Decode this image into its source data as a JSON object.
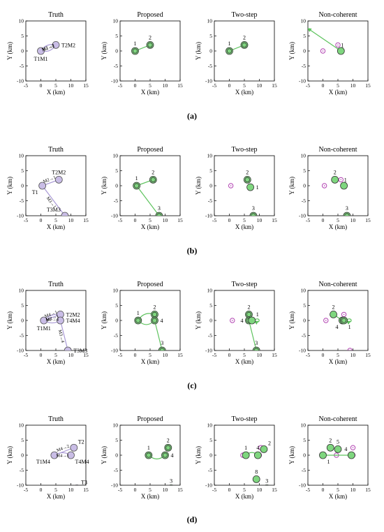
{
  "style": {
    "truth_fill": "#c9bde6",
    "est_fill": "#7fd67f",
    "ghost": "#b244b2",
    "truth_arrow": "#a999d6",
    "est_arrow": "#5dc35d",
    "frame": "#000000"
  },
  "axes": {
    "xlabel": "X (km)",
    "ylabel": "Y (km)",
    "xlim": [
      -5,
      15
    ],
    "ylim": [
      -10,
      10
    ],
    "xticks": [
      -5,
      0,
      5,
      10,
      15
    ],
    "yticks": [
      10,
      5,
      0,
      -5,
      -10
    ]
  },
  "column_titles": [
    "Truth",
    "Proposed",
    "Two-step",
    "Non-coherent"
  ],
  "chart_data": [
    {
      "row_label": "(a)",
      "panels": [
        {
          "title": "Truth",
          "type": "scatter",
          "nodes": [
            {
              "x": 0,
              "y": 0,
              "label": "T1M1",
              "label_pos": "below"
            },
            {
              "x": 5,
              "y": 2,
              "label": "T2M2",
              "label_pos": "right"
            }
          ],
          "links": [
            {
              "from": [
                5,
                2
              ],
              "to": [
                0,
                0
              ],
              "label": "M2→1",
              "bend": -0.35
            },
            {
              "from": [
                0,
                0
              ],
              "to": [
                5,
                2
              ],
              "label": "M1→2",
              "bend": -0.35
            }
          ]
        },
        {
          "title": "Proposed",
          "type": "scatter",
          "est": [
            {
              "x": 0,
              "y": 0,
              "label": "1",
              "label_pos": "above",
              "ring": true
            },
            {
              "x": 5,
              "y": 2,
              "label": "2",
              "label_pos": "above",
              "ring": true
            }
          ],
          "ghosts": [],
          "arrows": [
            {
              "from": [
                5,
                2
              ],
              "to": [
                0,
                0
              ]
            }
          ]
        },
        {
          "title": "Two-step",
          "type": "scatter",
          "est": [
            {
              "x": 0,
              "y": 0,
              "label": "1",
              "label_pos": "above",
              "ring": true
            },
            {
              "x": 5,
              "y": 2,
              "label": "2",
              "label_pos": "above",
              "ring": true
            }
          ],
          "ghosts": [],
          "arrows": [
            {
              "from": [
                0,
                0
              ],
              "to": [
                5,
                2
              ]
            }
          ]
        },
        {
          "title": "Non-coherent",
          "type": "scatter",
          "est": [
            {
              "x": 6,
              "y": 0,
              "label": "",
              "label_pos": "above",
              "ring": false
            }
          ],
          "ghosts": [
            {
              "x": 0,
              "y": 0,
              "label": ""
            },
            {
              "x": 5,
              "y": 2,
              "label": "1"
            }
          ],
          "arrows": [
            {
              "from": [
                6,
                0
              ],
              "to": [
                -5,
                7.5
              ]
            }
          ]
        }
      ]
    },
    {
      "row_label": "(b)",
      "panels": [
        {
          "title": "Truth",
          "type": "scatter",
          "nodes": [
            {
              "x": 0.5,
              "y": 0,
              "label": "T1",
              "label_pos": "below-left"
            },
            {
              "x": 6,
              "y": 2,
              "label": "T2M2",
              "label_pos": "above"
            },
            {
              "x": 8,
              "y": -10,
              "label": "T3M3",
              "label_pos": "above-left"
            }
          ],
          "links": [
            {
              "from": [
                6,
                2
              ],
              "to": [
                0.5,
                0
              ],
              "label": "M2→1",
              "bend": 0
            },
            {
              "from": [
                8,
                -10
              ],
              "to": [
                0.5,
                0
              ],
              "label": "M3→1",
              "bend": 0
            }
          ]
        },
        {
          "title": "Proposed",
          "type": "scatter",
          "est": [
            {
              "x": 0.5,
              "y": 0,
              "label": "1",
              "label_pos": "above",
              "ring": true
            },
            {
              "x": 6,
              "y": 2,
              "label": "2",
              "label_pos": "above",
              "ring": true
            },
            {
              "x": 8,
              "y": -10,
              "label": "3",
              "label_pos": "above",
              "ring": true
            }
          ],
          "ghosts": [],
          "arrows": [
            {
              "from": [
                6,
                2
              ],
              "to": [
                0.5,
                0
              ]
            },
            {
              "from": [
                8,
                -10
              ],
              "to": [
                0.5,
                0
              ]
            }
          ]
        },
        {
          "title": "Two-step",
          "type": "scatter",
          "est": [
            {
              "x": 6,
              "y": 2,
              "label": "2",
              "label_pos": "above",
              "ring": true
            },
            {
              "x": 7,
              "y": -0.5,
              "label": "1",
              "label_pos": "right",
              "ring": false
            },
            {
              "x": 8,
              "y": -10,
              "label": "3",
              "label_pos": "above",
              "ring": true
            }
          ],
          "ghosts": [
            {
              "x": 0.5,
              "y": 0,
              "label": ""
            }
          ],
          "arrows": []
        },
        {
          "title": "Non-coherent",
          "type": "scatter",
          "est": [
            {
              "x": 4,
              "y": 2,
              "label": "2",
              "label_pos": "above",
              "ring": false
            },
            {
              "x": 7,
              "y": 0,
              "label": "",
              "label_pos": "above",
              "ring": false
            },
            {
              "x": 8,
              "y": -10,
              "label": "3",
              "label_pos": "above",
              "ring": true
            }
          ],
          "ghosts": [
            {
              "x": 0.5,
              "y": 0,
              "label": ""
            },
            {
              "x": 6,
              "y": 2,
              "label": "1"
            }
          ],
          "arrows": []
        }
      ]
    },
    {
      "row_label": "(c)",
      "panels": [
        {
          "title": "Truth",
          "type": "scatter",
          "nodes": [
            {
              "x": 1,
              "y": 0,
              "label": "T1M1",
              "label_pos": "below"
            },
            {
              "x": 6.5,
              "y": 2,
              "label": "T2M2",
              "label_pos": "right"
            },
            {
              "x": 6.5,
              "y": 0,
              "label": "T4M4",
              "label_pos": "right"
            },
            {
              "x": 9,
              "y": -10,
              "label": "T3M3",
              "label_pos": "right"
            }
          ],
          "links": [
            {
              "from": [
                6.5,
                2
              ],
              "to": [
                1,
                0
              ],
              "label": "M4→1",
              "bend": 0
            },
            {
              "from": [
                6.5,
                2
              ],
              "to": [
                1,
                0
              ],
              "label": "M2→1",
              "bend": 0.25
            },
            {
              "from": [
                1,
                0
              ],
              "to": [
                6.5,
                0
              ],
              "label": "M1→4",
              "bend": 0.3
            },
            {
              "from": [
                9,
                -10
              ],
              "to": [
                6.5,
                0
              ],
              "label": "M3→4",
              "bend": 0
            }
          ]
        },
        {
          "title": "Proposed",
          "type": "scatter",
          "est": [
            {
              "x": 1,
              "y": 0,
              "label": "1",
              "label_pos": "above",
              "ring": true
            },
            {
              "x": 6.5,
              "y": 2,
              "label": "2",
              "label_pos": "above",
              "ring": true
            },
            {
              "x": 6.5,
              "y": 0,
              "label": "4",
              "label_pos": "right",
              "ring": true
            },
            {
              "x": 9,
              "y": -10,
              "label": "3",
              "label_pos": "above",
              "ring": true
            }
          ],
          "ghosts": [],
          "arrows": [
            {
              "from": [
                6.5,
                2
              ],
              "to": [
                1,
                0
              ],
              "bend": 0.4
            },
            {
              "from": [
                1,
                0
              ],
              "to": [
                6.5,
                0
              ],
              "bend": 0.5
            },
            {
              "from": [
                9,
                -10
              ],
              "to": [
                6.5,
                0
              ]
            }
          ]
        },
        {
          "title": "Two-step",
          "type": "scatter",
          "est": [
            {
              "x": 6.5,
              "y": 2,
              "label": "2",
              "label_pos": "above",
              "ring": true
            },
            {
              "x": 6.5,
              "y": 0,
              "label": "4",
              "label_pos": "left",
              "ring": true
            },
            {
              "x": 7.5,
              "y": 0,
              "label": "1",
              "label_pos": "above-right",
              "ring": false
            },
            {
              "x": 9,
              "y": -10,
              "label": "3",
              "label_pos": "above",
              "ring": true
            }
          ],
          "ghosts": [
            {
              "x": 1,
              "y": 0,
              "label": ""
            }
          ],
          "arrows": [
            {
              "from": [
                9,
                -10
              ],
              "to": [
                6.5,
                0
              ]
            },
            {
              "from": [
                7.5,
                0
              ],
              "to": [
                9.5,
                0
              ],
              "loop": true
            }
          ]
        },
        {
          "title": "Non-coherent",
          "type": "scatter",
          "est": [
            {
              "x": 3.5,
              "y": 2,
              "label": "2",
              "label_pos": "above",
              "ring": false
            },
            {
              "x": 6.5,
              "y": 0,
              "label": "4",
              "label_pos": "below-left",
              "ring": true
            },
            {
              "x": 7,
              "y": 0,
              "label": "1",
              "label_pos": "below-right",
              "ring": true
            }
          ],
          "ghosts": [
            {
              "x": 1,
              "y": 0,
              "label": ""
            },
            {
              "x": 7,
              "y": 2,
              "label": ""
            },
            {
              "x": 9,
              "y": -10,
              "label": ""
            }
          ],
          "arrows": [
            {
              "from": [
                3.5,
                2
              ],
              "to": [
                6.5,
                0
              ]
            },
            {
              "from": [
                7,
                0
              ],
              "to": [
                9,
                0
              ],
              "loop": true
            }
          ]
        }
      ]
    },
    {
      "row_label": "(d)",
      "panels": [
        {
          "title": "Truth",
          "type": "scatter",
          "nodes": [
            {
              "x": 4.5,
              "y": 0,
              "label": "T1M4",
              "label_pos": "below-left"
            },
            {
              "x": 11,
              "y": 2.5,
              "label": "T2",
              "label_pos": "above-right"
            },
            {
              "x": 10,
              "y": 0,
              "label": "T4M4",
              "label_pos": "below-right"
            },
            {
              "x": 12,
              "y": -11,
              "label": "T3",
              "label_pos": "above-right"
            }
          ],
          "links": [
            {
              "from": [
                11,
                2.5
              ],
              "to": [
                4.5,
                0
              ],
              "label": "M4→2",
              "bend": 0
            },
            {
              "from": [
                10,
                0
              ],
              "to": [
                4.5,
                0
              ],
              "label": "M4→1",
              "bend": 0.3
            }
          ]
        },
        {
          "title": "Proposed",
          "type": "scatter",
          "est": [
            {
              "x": 4.5,
              "y": 0,
              "label": "1",
              "label_pos": "above",
              "ring": true
            },
            {
              "x": 11,
              "y": 2.5,
              "label": "2",
              "label_pos": "above",
              "ring": true
            },
            {
              "x": 10,
              "y": 0,
              "label": "4",
              "label_pos": "right",
              "ring": true
            },
            {
              "x": 12,
              "y": -11,
              "label": "3",
              "label_pos": "above",
              "ring": true
            }
          ],
          "ghosts": [],
          "arrows": [
            {
              "from": [
                4.5,
                0
              ],
              "to": [
                10,
                0
              ],
              "bend": 0.45
            }
          ]
        },
        {
          "title": "Two-step",
          "type": "scatter",
          "est": [
            {
              "x": 5.5,
              "y": 0,
              "label": "1",
              "label_pos": "above",
              "ring": false
            },
            {
              "x": 11.5,
              "y": 2,
              "label": "2",
              "label_pos": "above-right",
              "ring": false
            },
            {
              "x": 9.5,
              "y": 0,
              "label": "4",
              "label_pos": "above",
              "ring": false
            },
            {
              "x": 9,
              "y": -8,
              "label": "8",
              "label_pos": "above",
              "ring": false
            },
            {
              "x": 12.5,
              "y": -11,
              "label": "3",
              "label_pos": "above",
              "ring": true
            }
          ],
          "ghosts": [
            {
              "x": 4.5,
              "y": 0,
              "label": ""
            },
            {
              "x": 10.5,
              "y": 2.5,
              "label": ""
            },
            {
              "x": 10,
              "y": 0,
              "label": ""
            }
          ],
          "arrows": [
            {
              "from": [
                9.5,
                0
              ],
              "to": [
                5.5,
                0
              ],
              "bend": 0.45
            }
          ]
        },
        {
          "title": "Non-coherent",
          "type": "scatter",
          "est": [
            {
              "x": 0,
              "y": 0,
              "label": "1",
              "label_pos": "below-right",
              "ring": false
            },
            {
              "x": 2.5,
              "y": 2.5,
              "label": "2",
              "label_pos": "above",
              "ring": false
            },
            {
              "x": 5,
              "y": 2,
              "label": "5",
              "label_pos": "above",
              "ring": false
            },
            {
              "x": 9.5,
              "y": 0,
              "label": "4",
              "label_pos": "above-left",
              "ring": false
            }
          ],
          "ghosts": [
            {
              "x": 4.5,
              "y": 0,
              "label": ""
            },
            {
              "x": 10,
              "y": 2.5,
              "label": ""
            },
            {
              "x": 10,
              "y": 0,
              "label": ""
            },
            {
              "x": 12,
              "y": -11,
              "label": ""
            }
          ],
          "arrows": [
            {
              "from": [
                9.5,
                0
              ],
              "to": [
                0,
                0
              ]
            }
          ]
        }
      ]
    }
  ]
}
